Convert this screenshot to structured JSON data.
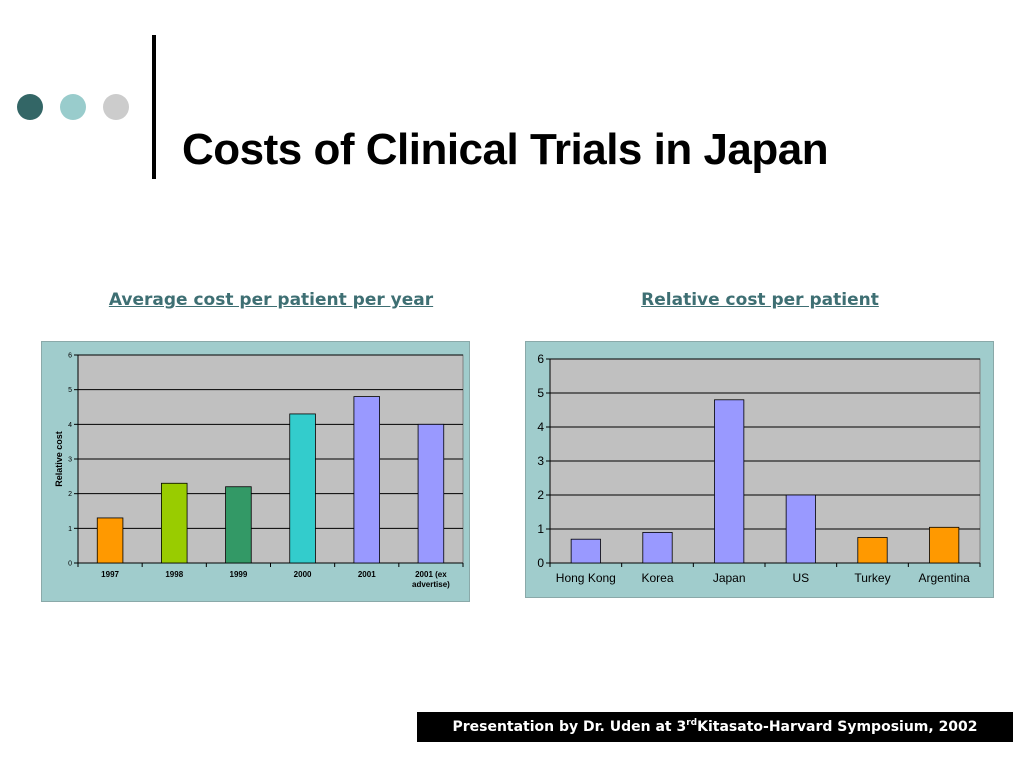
{
  "slide": {
    "title": "Costs of Clinical Trials in Japan",
    "dot_colors": [
      "#336666",
      "#99cccc",
      "#cccccc"
    ],
    "footer": {
      "before": "Presentation by Dr. Uden at 3",
      "superscript": "rd",
      "after": " Kitasato-Harvard Symposium, 2002"
    }
  },
  "chart_data": [
    {
      "type": "bar",
      "title": "Average cost per patient per year",
      "ylabel": "Relative cost",
      "xlabel": "",
      "categories": [
        "1997",
        "1998",
        "1999",
        "2000",
        "2001",
        "2001 (ex advertise)"
      ],
      "values": [
        1.3,
        2.3,
        2.2,
        4.3,
        4.8,
        4.0
      ],
      "colors": [
        "#ff9900",
        "#99cc00",
        "#339966",
        "#33cccc",
        "#9999ff",
        "#9999ff"
      ],
      "ylim": [
        0,
        6
      ],
      "yticks": [
        0,
        1,
        2,
        3,
        4,
        5,
        6
      ],
      "grid": true,
      "legend": "none"
    },
    {
      "type": "bar",
      "title": "Relative cost per patient",
      "ylabel": "",
      "xlabel": "",
      "categories": [
        "Hong Kong",
        "Korea",
        "Japan",
        "US",
        "Turkey",
        "Argentina"
      ],
      "values": [
        0.7,
        0.9,
        4.8,
        2.0,
        0.75,
        1.05
      ],
      "colors": [
        "#9999ff",
        "#9999ff",
        "#9999ff",
        "#9999ff",
        "#ff9900",
        "#ff9900"
      ],
      "ylim": [
        0,
        6
      ],
      "yticks": [
        0,
        1,
        2,
        3,
        4,
        5,
        6
      ],
      "grid": true,
      "legend": "none"
    }
  ]
}
